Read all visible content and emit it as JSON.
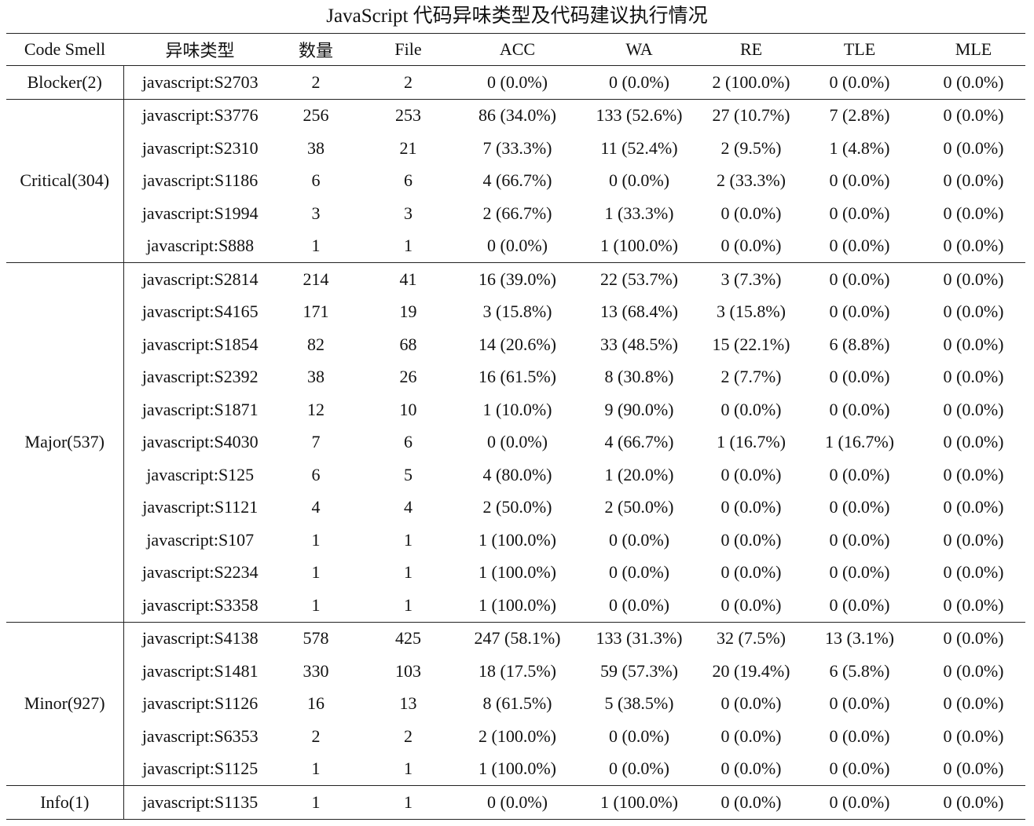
{
  "title": "JavaScript 代码异味类型及代码建议执行情况",
  "headers": [
    "Code Smell",
    "异味类型",
    "数量",
    "File",
    "ACC",
    "WA",
    "RE",
    "TLE",
    "MLE"
  ],
  "groups": [
    {
      "label": "Blocker(2)",
      "rows": [
        [
          "javascript:S2703",
          "2",
          "2",
          "0 (0.0%)",
          "0 (0.0%)",
          "2 (100.0%)",
          "0 (0.0%)",
          "0 (0.0%)"
        ]
      ]
    },
    {
      "label": "Critical(304)",
      "rows": [
        [
          "javascript:S3776",
          "256",
          "253",
          "86 (34.0%)",
          "133 (52.6%)",
          "27 (10.7%)",
          "7 (2.8%)",
          "0 (0.0%)"
        ],
        [
          "javascript:S2310",
          "38",
          "21",
          "7 (33.3%)",
          "11 (52.4%)",
          "2 (9.5%)",
          "1 (4.8%)",
          "0 (0.0%)"
        ],
        [
          "javascript:S1186",
          "6",
          "6",
          "4 (66.7%)",
          "0 (0.0%)",
          "2 (33.3%)",
          "0 (0.0%)",
          "0 (0.0%)"
        ],
        [
          "javascript:S1994",
          "3",
          "3",
          "2 (66.7%)",
          "1 (33.3%)",
          "0 (0.0%)",
          "0 (0.0%)",
          "0 (0.0%)"
        ],
        [
          "javascript:S888",
          "1",
          "1",
          "0 (0.0%)",
          "1 (100.0%)",
          "0 (0.0%)",
          "0 (0.0%)",
          "0 (0.0%)"
        ]
      ]
    },
    {
      "label": "Major(537)",
      "rows": [
        [
          "javascript:S2814",
          "214",
          "41",
          "16 (39.0%)",
          "22 (53.7%)",
          "3 (7.3%)",
          "0 (0.0%)",
          "0 (0.0%)"
        ],
        [
          "javascript:S4165",
          "171",
          "19",
          "3 (15.8%)",
          "13 (68.4%)",
          "3 (15.8%)",
          "0 (0.0%)",
          "0 (0.0%)"
        ],
        [
          "javascript:S1854",
          "82",
          "68",
          "14 (20.6%)",
          "33 (48.5%)",
          "15 (22.1%)",
          "6 (8.8%)",
          "0 (0.0%)"
        ],
        [
          "javascript:S2392",
          "38",
          "26",
          "16 (61.5%)",
          "8 (30.8%)",
          "2 (7.7%)",
          "0 (0.0%)",
          "0 (0.0%)"
        ],
        [
          "javascript:S1871",
          "12",
          "10",
          "1 (10.0%)",
          "9 (90.0%)",
          "0 (0.0%)",
          "0 (0.0%)",
          "0 (0.0%)"
        ],
        [
          "javascript:S4030",
          "7",
          "6",
          "0 (0.0%)",
          "4 (66.7%)",
          "1 (16.7%)",
          "1 (16.7%)",
          "0 (0.0%)"
        ],
        [
          "javascript:S125",
          "6",
          "5",
          "4 (80.0%)",
          "1 (20.0%)",
          "0 (0.0%)",
          "0 (0.0%)",
          "0 (0.0%)"
        ],
        [
          "javascript:S1121",
          "4",
          "4",
          "2 (50.0%)",
          "2 (50.0%)",
          "0 (0.0%)",
          "0 (0.0%)",
          "0 (0.0%)"
        ],
        [
          "javascript:S107",
          "1",
          "1",
          "1 (100.0%)",
          "0 (0.0%)",
          "0 (0.0%)",
          "0 (0.0%)",
          "0 (0.0%)"
        ],
        [
          "javascript:S2234",
          "1",
          "1",
          "1 (100.0%)",
          "0 (0.0%)",
          "0 (0.0%)",
          "0 (0.0%)",
          "0 (0.0%)"
        ],
        [
          "javascript:S3358",
          "1",
          "1",
          "1 (100.0%)",
          "0 (0.0%)",
          "0 (0.0%)",
          "0 (0.0%)",
          "0 (0.0%)"
        ]
      ]
    },
    {
      "label": "Minor(927)",
      "rows": [
        [
          "javascript:S4138",
          "578",
          "425",
          "247 (58.1%)",
          "133 (31.3%)",
          "32 (7.5%)",
          "13 (3.1%)",
          "0 (0.0%)"
        ],
        [
          "javascript:S1481",
          "330",
          "103",
          "18 (17.5%)",
          "59 (57.3%)",
          "20 (19.4%)",
          "6 (5.8%)",
          "0 (0.0%)"
        ],
        [
          "javascript:S1126",
          "16",
          "13",
          "8 (61.5%)",
          "5 (38.5%)",
          "0 (0.0%)",
          "0 (0.0%)",
          "0 (0.0%)"
        ],
        [
          "javascript:S6353",
          "2",
          "2",
          "2 (100.0%)",
          "0 (0.0%)",
          "0 (0.0%)",
          "0 (0.0%)",
          "0 (0.0%)"
        ],
        [
          "javascript:S1125",
          "1",
          "1",
          "1 (100.0%)",
          "0 (0.0%)",
          "0 (0.0%)",
          "0 (0.0%)",
          "0 (0.0%)"
        ]
      ]
    },
    {
      "label": "Info(1)",
      "rows": [
        [
          "javascript:S1135",
          "1",
          "1",
          "0 (0.0%)",
          "1 (100.0%)",
          "0 (0.0%)",
          "0 (0.0%)",
          "0 (0.0%)"
        ]
      ]
    }
  ]
}
